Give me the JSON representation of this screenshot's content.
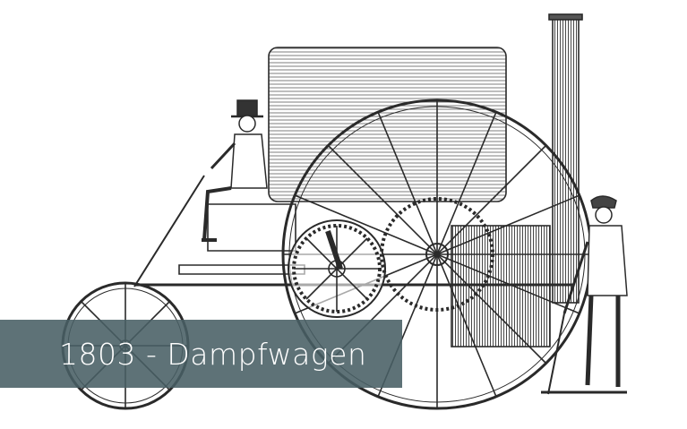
{
  "caption": {
    "text": "1803 - Dampfwagen",
    "band_color": "#485f64"
  },
  "illustration": {
    "subject": "engraving of an early steam carriage with driver and stoker",
    "ink_color": "#2a2a2a"
  }
}
